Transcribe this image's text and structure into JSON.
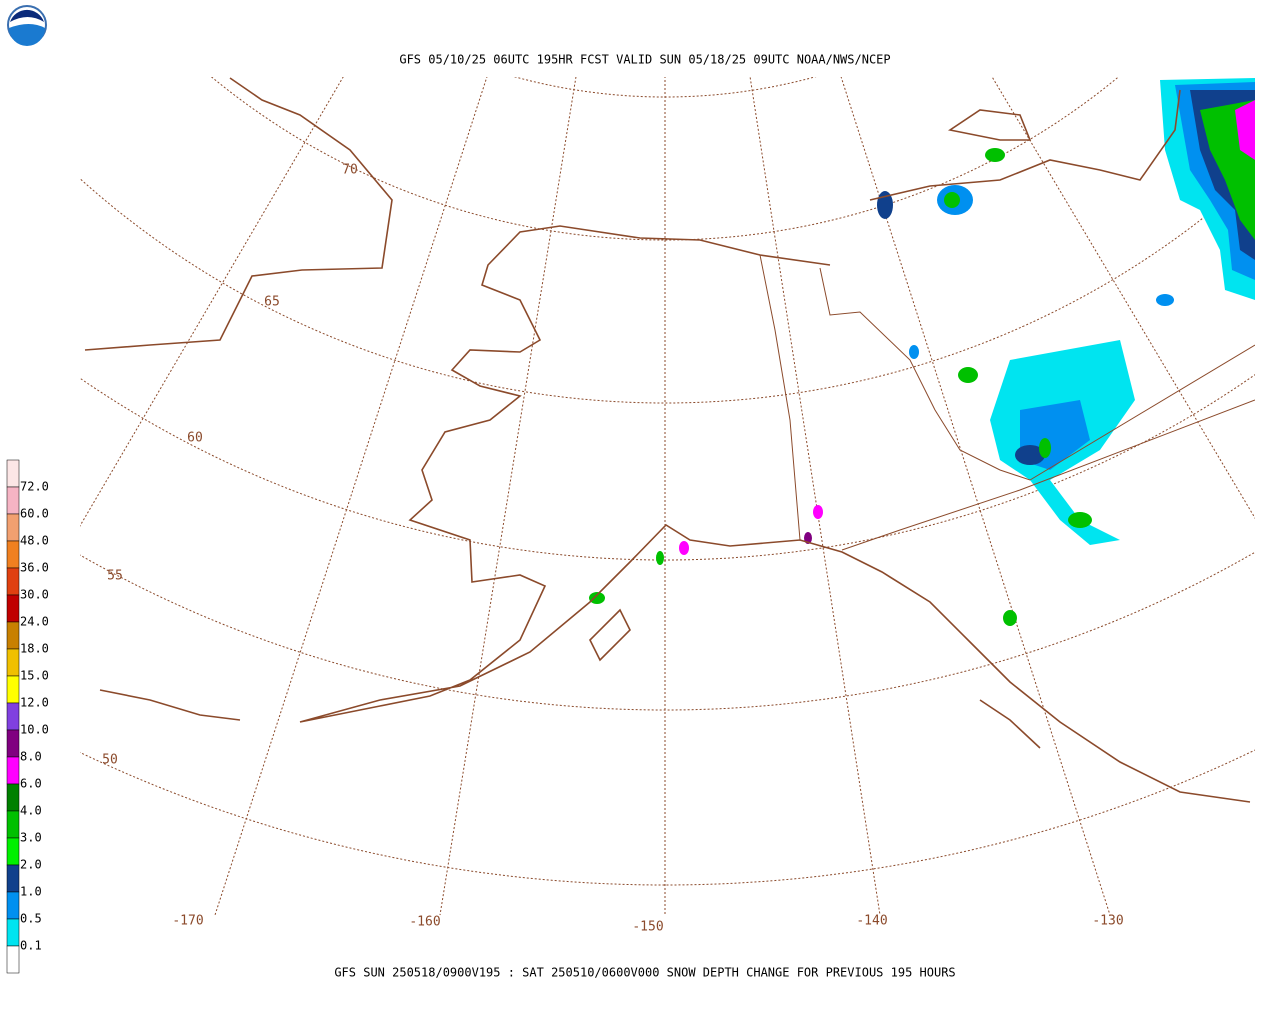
{
  "header": {
    "title": "GFS 05/10/25 06UTC 195HR FCST VALID SUN 05/18/25 09UTC NOAA/NWS/NCEP"
  },
  "footer": {
    "caption": "GFS SUN 250518/0900V195 : SAT 250510/0600V000 SNOW DEPTH CHANGE FOR PREVIOUS 195 HOURS"
  },
  "legend": {
    "labels": [
      "72.0",
      "60.0",
      "48.0",
      "36.0",
      "30.0",
      "24.0",
      "18.0",
      "15.0",
      "12.0",
      "10.0",
      "8.0",
      "6.0",
      "4.0",
      "3.0",
      "2.0",
      "1.0",
      "0.5",
      "0.1"
    ],
    "colors": [
      "#fce6e6",
      "#f6b4c4",
      "#f2a070",
      "#f08020",
      "#e04010",
      "#c00000",
      "#c88000",
      "#f0c000",
      "#ffff00",
      "#8040e0",
      "#800080",
      "#ff00ff",
      "#008000",
      "#00c000",
      "#00f000",
      "#10408c",
      "#0090f0",
      "#00e4f0",
      "#ffffff"
    ]
  },
  "map": {
    "latitude_labels": [
      "70",
      "65",
      "60",
      "55",
      "50"
    ],
    "longitude_labels": [
      "-170",
      "-160",
      "-150",
      "-140",
      "-130"
    ]
  }
}
